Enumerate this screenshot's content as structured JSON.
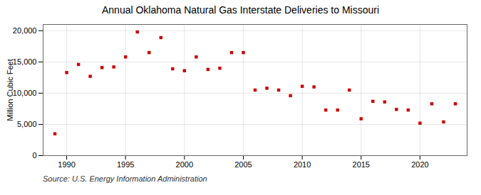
{
  "chart_data": {
    "type": "scatter",
    "title": "Annual Oklahoma Natural Gas Interstate Deliveries to Missouri",
    "ylabel": "Million Cubic Feet",
    "source": "Source: U.S. Energy Information Administration",
    "x": [
      1989,
      1990,
      1991,
      1992,
      1993,
      1994,
      1995,
      1996,
      1997,
      1998,
      1999,
      2000,
      2001,
      2002,
      2003,
      2004,
      2005,
      2006,
      2007,
      2008,
      2009,
      2010,
      2011,
      2012,
      2013,
      2014,
      2015,
      2016,
      2017,
      2018,
      2019,
      2020,
      2021,
      2022,
      2023
    ],
    "values": [
      3500,
      13300,
      14600,
      12700,
      14100,
      14200,
      15800,
      19800,
      16500,
      18900,
      13900,
      13600,
      15800,
      13800,
      14000,
      16500,
      16500,
      10500,
      10800,
      10500,
      9600,
      11100,
      11000,
      7300,
      7300,
      10500,
      5900,
      8700,
      8600,
      7400,
      7300,
      5200,
      8300,
      5400,
      8300
    ],
    "color": "#cc0000",
    "marker": "square",
    "xlim": [
      1988.0,
      2024.0
    ],
    "xticks": [
      1990,
      1995,
      2000,
      2005,
      2010,
      2015,
      2020
    ],
    "ylim": [
      0,
      21000
    ],
    "yticks": [
      0,
      {
        "value": 5000,
        "label": "5,000"
      },
      {
        "value": 10000,
        "label": "10,000"
      },
      {
        "value": 15000,
        "label": "15,000"
      },
      {
        "value": 20000,
        "label": "20,000"
      }
    ],
    "grid": true
  }
}
